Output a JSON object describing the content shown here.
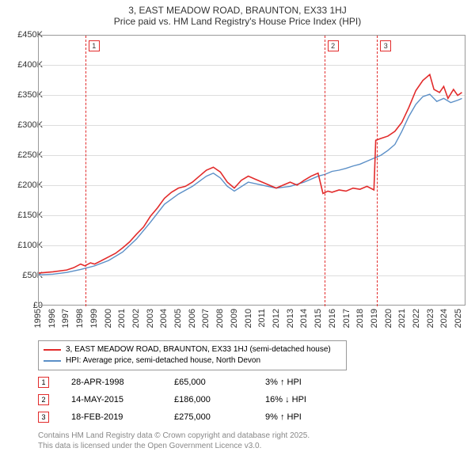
{
  "title": {
    "line1": "3, EAST MEADOW ROAD, BRAUNTON, EX33 1HJ",
    "line2": "Price paid vs. HM Land Registry's House Price Index (HPI)"
  },
  "chart": {
    "type": "line",
    "background_color": "#ffffff",
    "xlim": [
      1995,
      2025.5
    ],
    "ylim": [
      0,
      450000
    ],
    "ytick_step": 50000,
    "yticks": [
      "£0",
      "£50K",
      "£100K",
      "£150K",
      "£200K",
      "£250K",
      "£300K",
      "£350K",
      "£400K",
      "£450K"
    ],
    "xticks": [
      1995,
      1996,
      1997,
      1998,
      1999,
      2000,
      2001,
      2002,
      2003,
      2004,
      2005,
      2006,
      2007,
      2008,
      2009,
      2010,
      2011,
      2012,
      2013,
      2014,
      2015,
      2016,
      2017,
      2018,
      2019,
      2020,
      2021,
      2022,
      2023,
      2024,
      2025
    ],
    "grid_color": "#dddddd",
    "axis_color": "#999999",
    "label_fontsize": 11,
    "series": [
      {
        "name": "price_paid",
        "label": "3, EAST MEADOW ROAD, BRAUNTON, EX33 1HJ (semi-detached house)",
        "color": "#e22b2b",
        "line_width": 1.6,
        "points": [
          [
            1995,
            53000
          ],
          [
            1996,
            55000
          ],
          [
            1997,
            58000
          ],
          [
            1997.5,
            62000
          ],
          [
            1998,
            68000
          ],
          [
            1998.3,
            65000
          ],
          [
            1998.7,
            70000
          ],
          [
            1999,
            68000
          ],
          [
            1999.5,
            74000
          ],
          [
            2000,
            80000
          ],
          [
            2000.5,
            86000
          ],
          [
            2001,
            95000
          ],
          [
            2001.5,
            105000
          ],
          [
            2002,
            118000
          ],
          [
            2002.5,
            130000
          ],
          [
            2003,
            148000
          ],
          [
            2003.5,
            162000
          ],
          [
            2004,
            178000
          ],
          [
            2004.5,
            188000
          ],
          [
            2005,
            195000
          ],
          [
            2005.5,
            198000
          ],
          [
            2006,
            205000
          ],
          [
            2006.5,
            215000
          ],
          [
            2007,
            225000
          ],
          [
            2007.5,
            230000
          ],
          [
            2008,
            222000
          ],
          [
            2008.5,
            205000
          ],
          [
            2009,
            195000
          ],
          [
            2009.5,
            208000
          ],
          [
            2010,
            215000
          ],
          [
            2010.5,
            210000
          ],
          [
            2011,
            205000
          ],
          [
            2011.5,
            200000
          ],
          [
            2012,
            195000
          ],
          [
            2012.5,
            200000
          ],
          [
            2013,
            205000
          ],
          [
            2013.5,
            200000
          ],
          [
            2014,
            208000
          ],
          [
            2014.5,
            215000
          ],
          [
            2015,
            220000
          ],
          [
            2015.35,
            186000
          ],
          [
            2015.7,
            190000
          ],
          [
            2016,
            188000
          ],
          [
            2016.5,
            192000
          ],
          [
            2017,
            190000
          ],
          [
            2017.5,
            195000
          ],
          [
            2018,
            193000
          ],
          [
            2018.5,
            198000
          ],
          [
            2019,
            192000
          ],
          [
            2019.13,
            275000
          ],
          [
            2019.5,
            278000
          ],
          [
            2020,
            282000
          ],
          [
            2020.5,
            290000
          ],
          [
            2021,
            305000
          ],
          [
            2021.5,
            330000
          ],
          [
            2022,
            358000
          ],
          [
            2022.5,
            375000
          ],
          [
            2023,
            385000
          ],
          [
            2023.3,
            360000
          ],
          [
            2023.7,
            355000
          ],
          [
            2024,
            365000
          ],
          [
            2024.3,
            345000
          ],
          [
            2024.7,
            360000
          ],
          [
            2025,
            350000
          ],
          [
            2025.3,
            355000
          ]
        ]
      },
      {
        "name": "hpi",
        "label": "HPI: Average price, semi-detached house, North Devon",
        "color": "#5b8fc7",
        "line_width": 1.4,
        "points": [
          [
            1995,
            50000
          ],
          [
            1996,
            51000
          ],
          [
            1997,
            54000
          ],
          [
            1998,
            59000
          ],
          [
            1999,
            65000
          ],
          [
            2000,
            74000
          ],
          [
            2001,
            88000
          ],
          [
            2002,
            110000
          ],
          [
            2003,
            138000
          ],
          [
            2004,
            168000
          ],
          [
            2005,
            185000
          ],
          [
            2006,
            198000
          ],
          [
            2007,
            215000
          ],
          [
            2007.5,
            220000
          ],
          [
            2008,
            212000
          ],
          [
            2008.5,
            198000
          ],
          [
            2009,
            190000
          ],
          [
            2010,
            205000
          ],
          [
            2011,
            200000
          ],
          [
            2012,
            195000
          ],
          [
            2013,
            198000
          ],
          [
            2014,
            205000
          ],
          [
            2015,
            215000
          ],
          [
            2015.5,
            218000
          ],
          [
            2016,
            223000
          ],
          [
            2016.5,
            225000
          ],
          [
            2017,
            228000
          ],
          [
            2017.5,
            232000
          ],
          [
            2018,
            235000
          ],
          [
            2018.5,
            240000
          ],
          [
            2019,
            245000
          ],
          [
            2019.5,
            250000
          ],
          [
            2020,
            258000
          ],
          [
            2020.5,
            268000
          ],
          [
            2021,
            290000
          ],
          [
            2021.5,
            315000
          ],
          [
            2022,
            335000
          ],
          [
            2022.5,
            348000
          ],
          [
            2023,
            352000
          ],
          [
            2023.5,
            340000
          ],
          [
            2024,
            345000
          ],
          [
            2024.5,
            338000
          ],
          [
            2025,
            342000
          ],
          [
            2025.3,
            345000
          ]
        ]
      }
    ],
    "markers": [
      {
        "n": "1",
        "x": 1998.32,
        "color": "#e22b2b"
      },
      {
        "n": "2",
        "x": 2015.37,
        "color": "#e22b2b"
      },
      {
        "n": "3",
        "x": 2019.13,
        "color": "#e22b2b"
      }
    ]
  },
  "legend": {
    "rows": [
      {
        "color": "#e22b2b",
        "label": "3, EAST MEADOW ROAD, BRAUNTON, EX33 1HJ (semi-detached house)"
      },
      {
        "color": "#5b8fc7",
        "label": "HPI: Average price, semi-detached house, North Devon"
      }
    ]
  },
  "sales": [
    {
      "n": "1",
      "color": "#e22b2b",
      "date": "28-APR-1998",
      "price": "£65,000",
      "diff": "3% ↑ HPI"
    },
    {
      "n": "2",
      "color": "#e22b2b",
      "date": "14-MAY-2015",
      "price": "£186,000",
      "diff": "16% ↓ HPI"
    },
    {
      "n": "3",
      "color": "#e22b2b",
      "date": "18-FEB-2019",
      "price": "£275,000",
      "diff": "9% ↑ HPI"
    }
  ],
  "footer": {
    "line1": "Contains HM Land Registry data © Crown copyright and database right 2025.",
    "line2": "This data is licensed under the Open Government Licence v3.0."
  }
}
